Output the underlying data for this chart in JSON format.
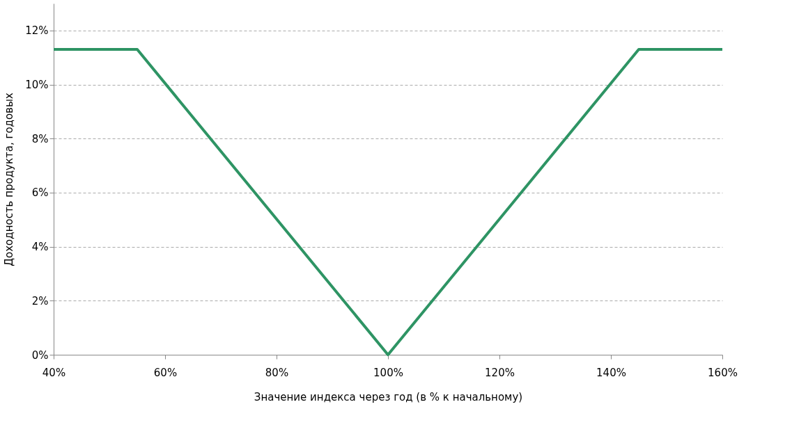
{
  "chart_data": {
    "type": "line",
    "xlabel": "Значение индекса через год (в % к начальному)",
    "ylabel": "Доходность продукта, годовых",
    "x": [
      40,
      55,
      100,
      145,
      160
    ],
    "series": [
      {
        "color": "#2e9464",
        "values": [
          11.3,
          11.3,
          0,
          11.3,
          11.3
        ]
      }
    ],
    "xlim": [
      40,
      160
    ],
    "ylim": [
      0,
      13
    ],
    "xticks": [
      {
        "value": 40,
        "label": "40%"
      },
      {
        "value": 60,
        "label": "60%"
      },
      {
        "value": 80,
        "label": "80%"
      },
      {
        "value": 100,
        "label": "100%"
      },
      {
        "value": 120,
        "label": "120%"
      },
      {
        "value": 140,
        "label": "140%"
      },
      {
        "value": 160,
        "label": "160%"
      }
    ],
    "yticks": [
      {
        "value": 0,
        "label": "0%"
      },
      {
        "value": 2,
        "label": "2%"
      },
      {
        "value": 4,
        "label": "4%"
      },
      {
        "value": 6,
        "label": "6%"
      },
      {
        "value": 8,
        "label": "8%"
      },
      {
        "value": 10,
        "label": "10%"
      },
      {
        "value": 12,
        "label": "12%"
      }
    ],
    "grid": "y",
    "line_style": "solid",
    "marker": "none"
  }
}
